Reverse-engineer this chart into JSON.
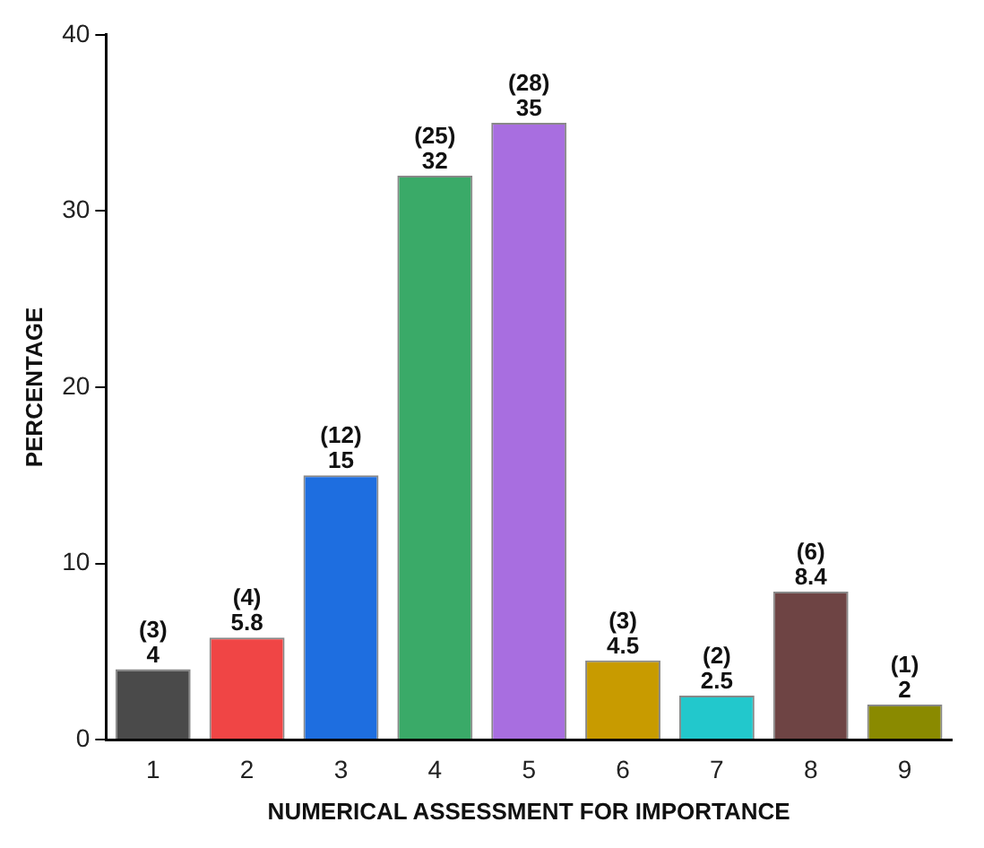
{
  "chart_data": {
    "type": "bar",
    "xlabel": "NUMERICAL ASSESSMENT FOR IMPORTANCE",
    "ylabel": "PERCENTAGE",
    "categories": [
      "1",
      "2",
      "3",
      "4",
      "5",
      "6",
      "7",
      "8",
      "9"
    ],
    "values": [
      4,
      5.8,
      15,
      32,
      35,
      4.5,
      2.5,
      8.4,
      2
    ],
    "colors": [
      "#4a4a4a",
      "#f04545",
      "#1e6ee0",
      "#3aaa68",
      "#a86ee0",
      "#c89b00",
      "#22c8cc",
      "#6e4444",
      "#8a8a00"
    ],
    "ylim": [
      0,
      40
    ],
    "yticks": [
      0,
      10,
      20,
      30,
      40
    ],
    "grid": false,
    "legend": false,
    "data_labels": true,
    "annotations": [
      {
        "text": "(3)",
        "x": "1",
        "y": 4
      },
      {
        "text": "(4)",
        "x": "2",
        "y": 5.8
      },
      {
        "text": "(12)",
        "x": "3",
        "y": 15
      },
      {
        "text": "(25)",
        "x": "4",
        "y": 32
      },
      {
        "text": "(28)",
        "x": "5",
        "y": 35
      },
      {
        "text": "(3)",
        "x": "6",
        "y": 4.5
      },
      {
        "text": "(2)",
        "x": "7",
        "y": 2.5
      },
      {
        "text": "(6)",
        "x": "8",
        "y": 8.4
      },
      {
        "text": "(1)",
        "x": "9",
        "y": 2
      }
    ]
  }
}
